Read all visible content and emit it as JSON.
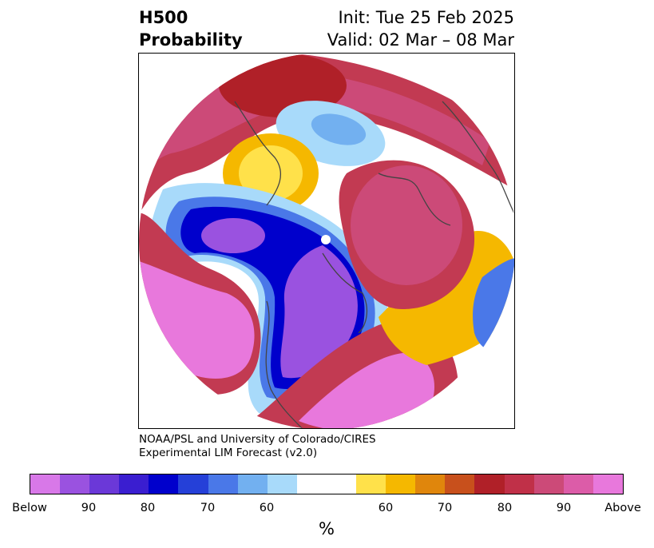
{
  "title": {
    "left_line1": "H500",
    "left_line2": "Probability",
    "right_line1": "Init: Tue 25 Feb 2025",
    "right_line2": "Valid: 02 Mar – 08 Mar"
  },
  "credit": {
    "line1": "NOAA/PSL and University of Colorado/CIRES",
    "line2": "Experimental LIM Forecast (v2.0)"
  },
  "colorbar": {
    "unit": "%",
    "colors": [
      "#d878e8",
      "#9a52e0",
      "#6b38d8",
      "#3a1ed0",
      "#0000cc",
      "#2540d8",
      "#4a78e8",
      "#72b0f0",
      "#a8dafa",
      "#ffffff",
      "#ffffff",
      "#ffe14a",
      "#f5b800",
      "#e0860c",
      "#c8501c",
      "#b02028",
      "#c03048",
      "#cc4a78",
      "#dc5ca8",
      "#e878dc"
    ],
    "ticks": [
      "Below",
      "90",
      "80",
      "70",
      "60",
      "60",
      "70",
      "80",
      "90",
      "Above"
    ]
  }
}
